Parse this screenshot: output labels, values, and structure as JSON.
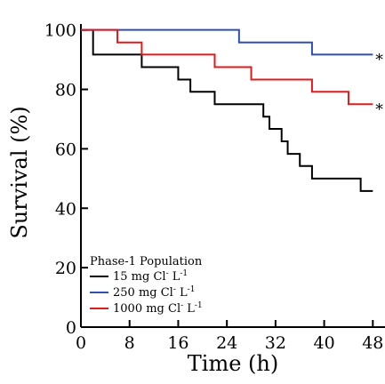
{
  "chart_data": {
    "type": "line",
    "step": true,
    "xlabel": "Time (h)",
    "ylabel": "Survival (%)",
    "xlim": [
      0,
      50
    ],
    "ylim": [
      0,
      102
    ],
    "xticks": [
      0,
      8,
      16,
      24,
      32,
      40,
      48
    ],
    "yticks": [
      0,
      20,
      40,
      60,
      80,
      100
    ],
    "grid": false,
    "legend": {
      "title": "Phase-1 Population",
      "placement": "bottom-left"
    },
    "series": [
      {
        "name": "15 mg Cl⁻ L⁻¹",
        "name_main": "15 mg Cl",
        "name_sup1": "-",
        "name_mid": " L",
        "name_sup2": "-1",
        "color": "#000000",
        "x": [
          0,
          2,
          10,
          16,
          18,
          22,
          30,
          31,
          33,
          34,
          36,
          38,
          46,
          48
        ],
        "y": [
          100,
          91.7,
          87.5,
          83.3,
          79.2,
          75,
          70.8,
          66.7,
          62.5,
          58.3,
          54.2,
          50,
          45.8,
          45.8
        ]
      },
      {
        "name": "250 mg Cl⁻ L⁻¹",
        "name_main": "250 mg Cl",
        "name_sup1": "-",
        "name_mid": " L",
        "name_sup2": "-1",
        "color": "#2e4fb4",
        "x": [
          0,
          26,
          38,
          48
        ],
        "y": [
          100,
          95.8,
          91.7,
          91.7
        ]
      },
      {
        "name": "1000 mg Cl⁻ L⁻¹",
        "name_main": "1000 mg Cl",
        "name_sup1": "-",
        "name_mid": " L",
        "name_sup2": "-1",
        "color": "#e31a1c",
        "x": [
          0,
          6,
          10,
          22,
          28,
          38,
          44,
          48
        ],
        "y": [
          100,
          95.8,
          91.7,
          87.5,
          83.3,
          79.2,
          75,
          75
        ]
      }
    ],
    "annotations": [
      {
        "text": "*",
        "x": 48,
        "y": 91.7
      },
      {
        "text": "*",
        "x": 48,
        "y": 75
      }
    ]
  }
}
